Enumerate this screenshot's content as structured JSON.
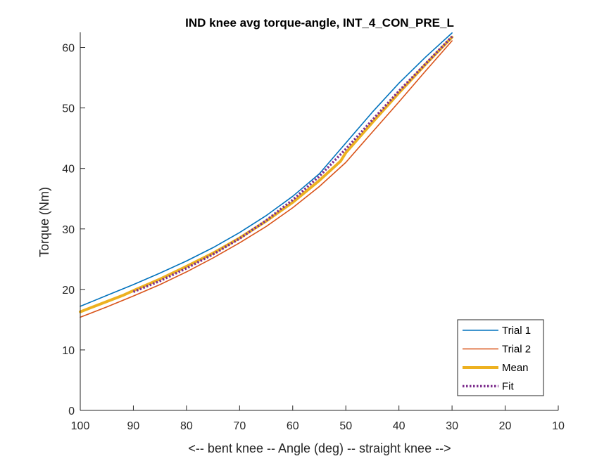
{
  "chart_data": {
    "type": "line",
    "title": "IND knee avg torque-angle, INT_4_CON_PRE_L",
    "xlabel": "<-- bent knee -- Angle (deg) -- straight knee -->",
    "ylabel": "Torque (Nm)",
    "xlim": [
      100,
      10
    ],
    "ylim": [
      0,
      62.5
    ],
    "x_reversed": true,
    "grid": false,
    "xticks": [
      100,
      90,
      80,
      70,
      60,
      50,
      40,
      30,
      20,
      10
    ],
    "yticks": [
      0,
      10,
      20,
      30,
      40,
      50,
      60
    ],
    "legend_position": "bottom-right",
    "series": [
      {
        "name": "Trial 1",
        "color": "#0072BD",
        "style": "solid",
        "x": [
          100,
          95,
          90,
          85,
          80,
          75,
          70,
          65,
          60,
          55,
          50,
          45,
          40,
          35,
          30
        ],
        "y": [
          17.2,
          19.0,
          20.8,
          22.7,
          24.7,
          26.9,
          29.4,
          32.2,
          35.4,
          39.1,
          44.2,
          49.3,
          54.1,
          58.4,
          62.4
        ]
      },
      {
        "name": "Trial 2",
        "color": "#D95319",
        "style": "solid",
        "x": [
          100,
          95,
          90,
          85,
          80,
          75,
          70,
          65,
          60,
          55,
          50,
          45,
          40,
          35,
          30
        ],
        "y": [
          15.4,
          17.1,
          18.9,
          20.8,
          22.9,
          25.2,
          27.7,
          30.4,
          33.5,
          37.0,
          41.0,
          46.0,
          51.0,
          56.1,
          61.1
        ]
      },
      {
        "name": "Mean",
        "color": "#EDB120",
        "style": "thick",
        "x": [
          100,
          95,
          92,
          90,
          85,
          80,
          75,
          70,
          65,
          60,
          55,
          51,
          50,
          45,
          40,
          35,
          30
        ],
        "y": [
          16.3,
          18.0,
          19.0,
          19.8,
          21.7,
          23.8,
          26.0,
          28.5,
          31.3,
          34.4,
          38.0,
          41.2,
          42.6,
          47.6,
          52.5,
          57.2,
          61.7
        ]
      },
      {
        "name": "Fit",
        "color": "#7E2F8E",
        "style": "dotted",
        "x": [
          90,
          85,
          80,
          75,
          70,
          65,
          60,
          55,
          50,
          45,
          40,
          35,
          30
        ],
        "y": [
          19.6,
          21.4,
          23.5,
          25.8,
          28.4,
          31.4,
          34.8,
          38.7,
          43.2,
          48.0,
          52.8,
          57.3,
          61.8
        ]
      }
    ]
  }
}
